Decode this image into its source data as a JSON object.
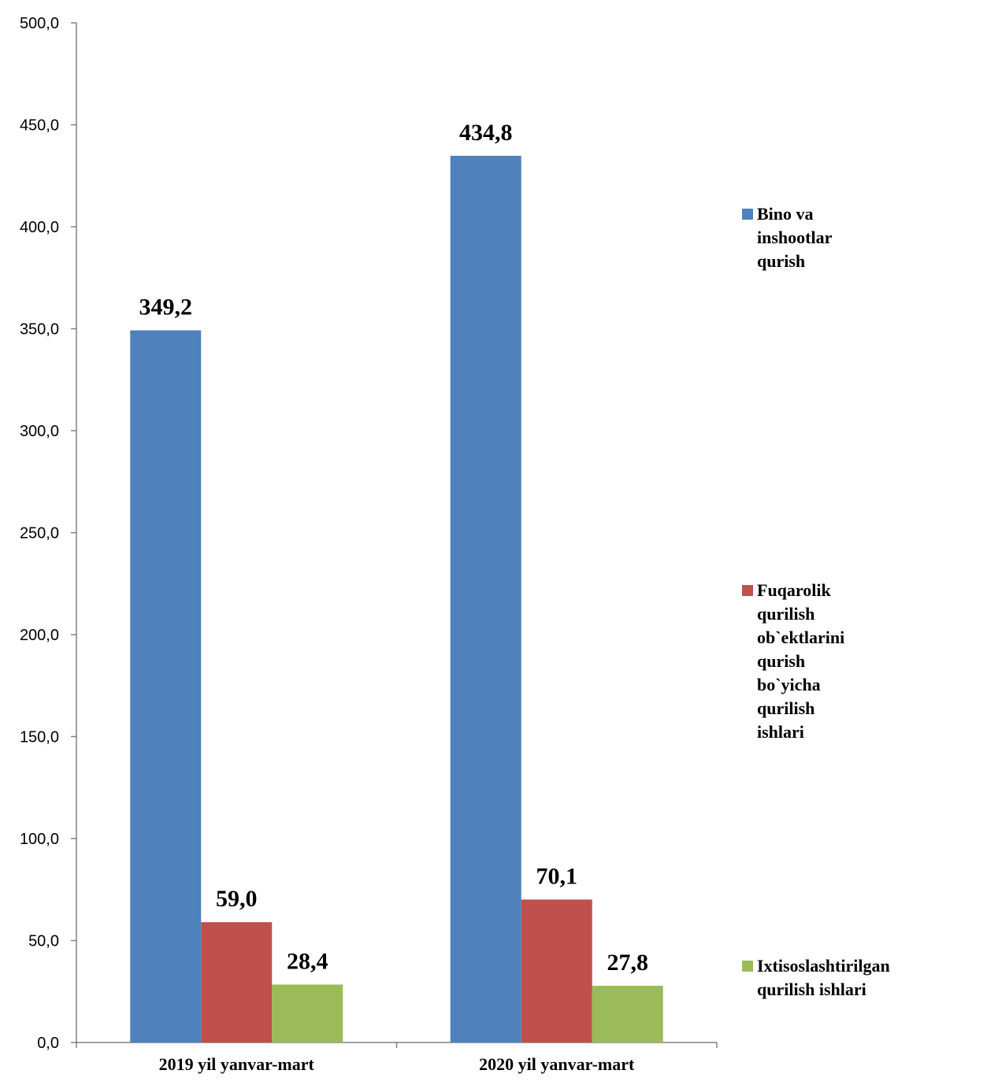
{
  "chart_data": {
    "type": "bar",
    "categories": [
      "2019 yil yanvar-mart",
      "2020 yil yanvar-mart"
    ],
    "series": [
      {
        "name": "Bino va inshootlar qurish",
        "values": [
          349.2,
          434.8
        ],
        "labels": [
          "349,2",
          "434,8"
        ],
        "color": "#4F81BD"
      },
      {
        "name": "Fuqarolik qurilish\nob`ektlarini qurish\nbo`yicha qurilish ishlari",
        "values": [
          59.0,
          70.1
        ],
        "labels": [
          "59,0",
          "70,1"
        ],
        "color": "#C0504D"
      },
      {
        "name": "Ixtisoslashtirilgan\nqurilish ishlari",
        "values": [
          28.4,
          27.8
        ],
        "labels": [
          "28,4",
          "27,8"
        ],
        "color": "#9BBB59"
      }
    ],
    "y_ticks": [
      "0,0",
      "50,0",
      "100,0",
      "150,0",
      "200,0",
      "250,0",
      "300,0",
      "350,0",
      "400,0",
      "450,0",
      "500,0"
    ],
    "ylim": [
      0,
      500
    ],
    "grid": false,
    "legend_position": "right"
  }
}
